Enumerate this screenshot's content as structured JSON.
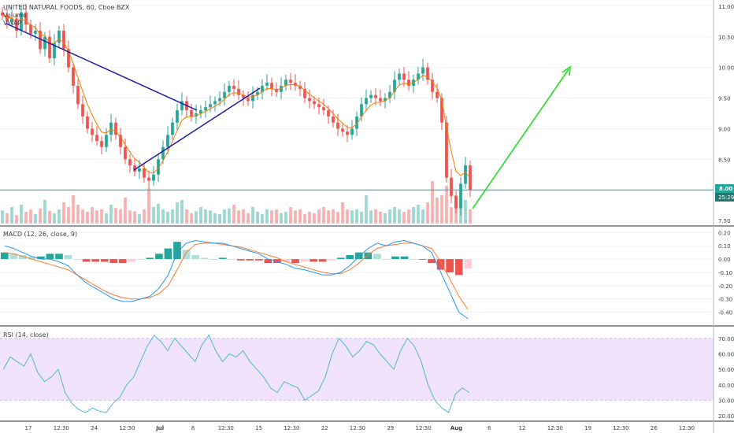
{
  "symbol_header": "UNITED NATURAL FOODS, 60, Cboe BZX",
  "volume_label": "Volume",
  "vwap_label": "VWAP",
  "macd_label": "MACD (12, 26, close, 9)",
  "rsi_label": "RSI (14, close)",
  "price_badge": "8.00",
  "time_badge": "25:29",
  "colors": {
    "up": "#26a69a",
    "down": "#ef5350",
    "vwap": "#f57c00",
    "trend": "#1a1aa8",
    "arrow": "#22dd22",
    "macd": "#2196f3",
    "signal": "#ff7a2e",
    "rsi": "#4fb6d8",
    "rsi_band": "#f1e3fb",
    "price_line": "#26a69a"
  },
  "chart_data": [
    {
      "type": "candlestick",
      "title": "UNITED NATURAL FOODS, 60, Cboe BZX",
      "series": [
        {
          "name": "Price",
          "values": [
            10.85,
            10.75,
            10.8,
            10.6,
            10.9,
            10.7,
            10.55,
            10.6,
            10.3,
            10.5,
            10.15,
            10.4,
            10.6,
            10.3,
            10.0,
            9.7,
            9.4,
            9.2,
            9.0,
            8.9,
            8.8,
            8.7,
            8.9,
            9.1,
            8.9,
            8.7,
            8.5,
            8.4,
            8.3,
            8.35,
            8.2,
            8.15,
            8.25,
            8.5,
            8.7,
            8.9,
            9.1,
            9.3,
            9.45,
            9.3,
            9.2,
            9.25,
            9.3,
            9.35,
            9.4,
            9.45,
            9.5,
            9.6,
            9.7,
            9.65,
            9.55,
            9.5,
            9.45,
            9.55,
            9.6,
            9.7,
            9.75,
            9.65,
            9.6,
            9.7,
            9.8,
            9.75,
            9.7,
            9.65,
            9.5,
            9.45,
            9.4,
            9.35,
            9.3,
            9.2,
            9.1,
            9.0,
            8.95,
            8.9,
            9.0,
            9.2,
            9.4,
            9.5,
            9.55,
            9.5,
            9.45,
            9.5,
            9.6,
            9.8,
            9.9,
            9.8,
            9.7,
            9.8,
            9.9,
            10.0,
            9.8,
            9.6,
            9.5,
            9.1,
            8.2,
            7.9,
            7.7,
            8.1,
            8.4,
            8.0
          ]
        }
      ],
      "volume": [
        0.28,
        0.22,
        0.35,
        0.18,
        0.4,
        0.25,
        0.3,
        0.2,
        0.32,
        0.5,
        0.27,
        0.22,
        0.3,
        0.45,
        0.35,
        0.6,
        0.4,
        0.3,
        0.25,
        0.35,
        0.28,
        0.3,
        0.22,
        0.4,
        0.33,
        0.3,
        0.55,
        0.28,
        0.26,
        0.2,
        0.3,
        0.75,
        0.35,
        0.42,
        0.3,
        0.25,
        0.3,
        0.45,
        0.5,
        0.3,
        0.22,
        0.26,
        0.35,
        0.3,
        0.28,
        0.22,
        0.2,
        0.3,
        0.32,
        0.4,
        0.28,
        0.3,
        0.22,
        0.35,
        0.25,
        0.2,
        0.3,
        0.28,
        0.3,
        0.22,
        0.25,
        0.35,
        0.28,
        0.3,
        0.2,
        0.25,
        0.22,
        0.3,
        0.35,
        0.28,
        0.3,
        0.25,
        0.45,
        0.3,
        0.28,
        0.3,
        0.25,
        0.6,
        0.28,
        0.3,
        0.25,
        0.22,
        0.3,
        0.35,
        0.3,
        0.25,
        0.3,
        0.35,
        0.4,
        0.3,
        0.45,
        0.9,
        0.55,
        0.6,
        0.8,
        0.35,
        0.6,
        0.4,
        0.5,
        0.3
      ],
      "vwap_line": true,
      "y_ticks": [
        "11.00",
        "10.50",
        "10.00",
        "9.50",
        "9.00",
        "8.50",
        "8.00",
        "7.50"
      ],
      "ylim": [
        7.45,
        11.05
      ],
      "legend": [
        "Volume",
        "VWAP"
      ],
      "current_price": 8.0
    },
    {
      "type": "line",
      "title": "MACD (12, 26, close, 9)",
      "series": [
        {
          "name": "MACD",
          "values": [
            0.1,
            0.08,
            0.05,
            0.02,
            0.0,
            0.0,
            -0.02,
            -0.05,
            -0.12,
            -0.18,
            -0.22,
            -0.26,
            -0.3,
            -0.32,
            -0.32,
            -0.3,
            -0.28,
            -0.22,
            -0.12,
            0.05,
            0.12,
            0.14,
            0.13,
            0.12,
            0.12,
            0.1,
            0.08,
            0.06,
            0.04,
            0.0,
            -0.02,
            -0.04,
            -0.07,
            -0.08,
            -0.1,
            -0.12,
            -0.12,
            -0.1,
            -0.05,
            0.02,
            0.08,
            0.12,
            0.1,
            0.13,
            0.14,
            0.12,
            0.1,
            0.05,
            -0.1,
            -0.25,
            -0.4,
            -0.45
          ]
        },
        {
          "name": "Signal",
          "values": [
            0.05,
            0.04,
            0.02,
            0.0,
            -0.02,
            -0.04,
            -0.06,
            -0.08,
            -0.12,
            -0.16,
            -0.2,
            -0.24,
            -0.27,
            -0.29,
            -0.3,
            -0.3,
            -0.29,
            -0.26,
            -0.2,
            -0.08,
            0.05,
            0.11,
            0.12,
            0.12,
            0.11,
            0.1,
            0.09,
            0.07,
            0.05,
            0.03,
            0.01,
            -0.02,
            -0.04,
            -0.06,
            -0.08,
            -0.1,
            -0.11,
            -0.11,
            -0.08,
            -0.03,
            0.03,
            0.08,
            0.1,
            0.11,
            0.12,
            0.12,
            0.1,
            0.08,
            -0.02,
            -0.15,
            -0.28,
            -0.38
          ]
        }
      ],
      "histogram": [
        0.05,
        0.04,
        0.03,
        0.02,
        0.02,
        0.04,
        0.04,
        0.03,
        0.0,
        -0.02,
        -0.02,
        -0.02,
        -0.03,
        -0.03,
        -0.02,
        0.0,
        0.01,
        0.04,
        0.08,
        0.13,
        0.07,
        0.03,
        0.01,
        0.0,
        0.01,
        0.0,
        -0.01,
        -0.01,
        -0.01,
        -0.03,
        -0.03,
        -0.02,
        -0.03,
        -0.02,
        -0.02,
        -0.02,
        -0.01,
        0.01,
        0.03,
        0.05,
        0.05,
        0.04,
        0.0,
        0.02,
        0.02,
        0.0,
        0.0,
        -0.03,
        -0.08,
        -0.1,
        -0.12,
        -0.07
      ],
      "y_ticks": [
        "0.20",
        "0.10",
        "0.00",
        "-0.10",
        "-0.20",
        "-0.30",
        "-0.40"
      ],
      "ylim": [
        -0.48,
        0.22
      ]
    },
    {
      "type": "line",
      "title": "RSI (14, close)",
      "series": [
        {
          "name": "RSI",
          "values": [
            50,
            58,
            55,
            52,
            60,
            48,
            42,
            45,
            50,
            35,
            28,
            24,
            22,
            25,
            23,
            22,
            28,
            32,
            40,
            45,
            55,
            65,
            72,
            68,
            62,
            70,
            65,
            60,
            55,
            66,
            72,
            62,
            55,
            60,
            58,
            62,
            55,
            50,
            45,
            38,
            35,
            42,
            40,
            38,
            30,
            33,
            36,
            45,
            60,
            70,
            65,
            58,
            62,
            68,
            66,
            60,
            55,
            50,
            62,
            70,
            65,
            55,
            40,
            30,
            25,
            22,
            34,
            38,
            35
          ]
        }
      ],
      "y_ticks": [
        "70.00",
        "60.00",
        "50.00",
        "40.00",
        "30.00",
        "20.00"
      ],
      "ylim": [
        18,
        75
      ],
      "bands": [
        30,
        70
      ]
    }
  ],
  "x_axis": {
    "ticks": [
      "17",
      "12:30",
      "24",
      "12:30",
      "Jul",
      "8",
      "12:30",
      "15",
      "12:30",
      "22",
      "12:30",
      "29",
      "12:30",
      "Aug",
      "6",
      "12",
      "12:30",
      "19",
      "12:30",
      "26",
      "12:30"
    ],
    "bold": [
      "Jul",
      "Aug"
    ]
  }
}
